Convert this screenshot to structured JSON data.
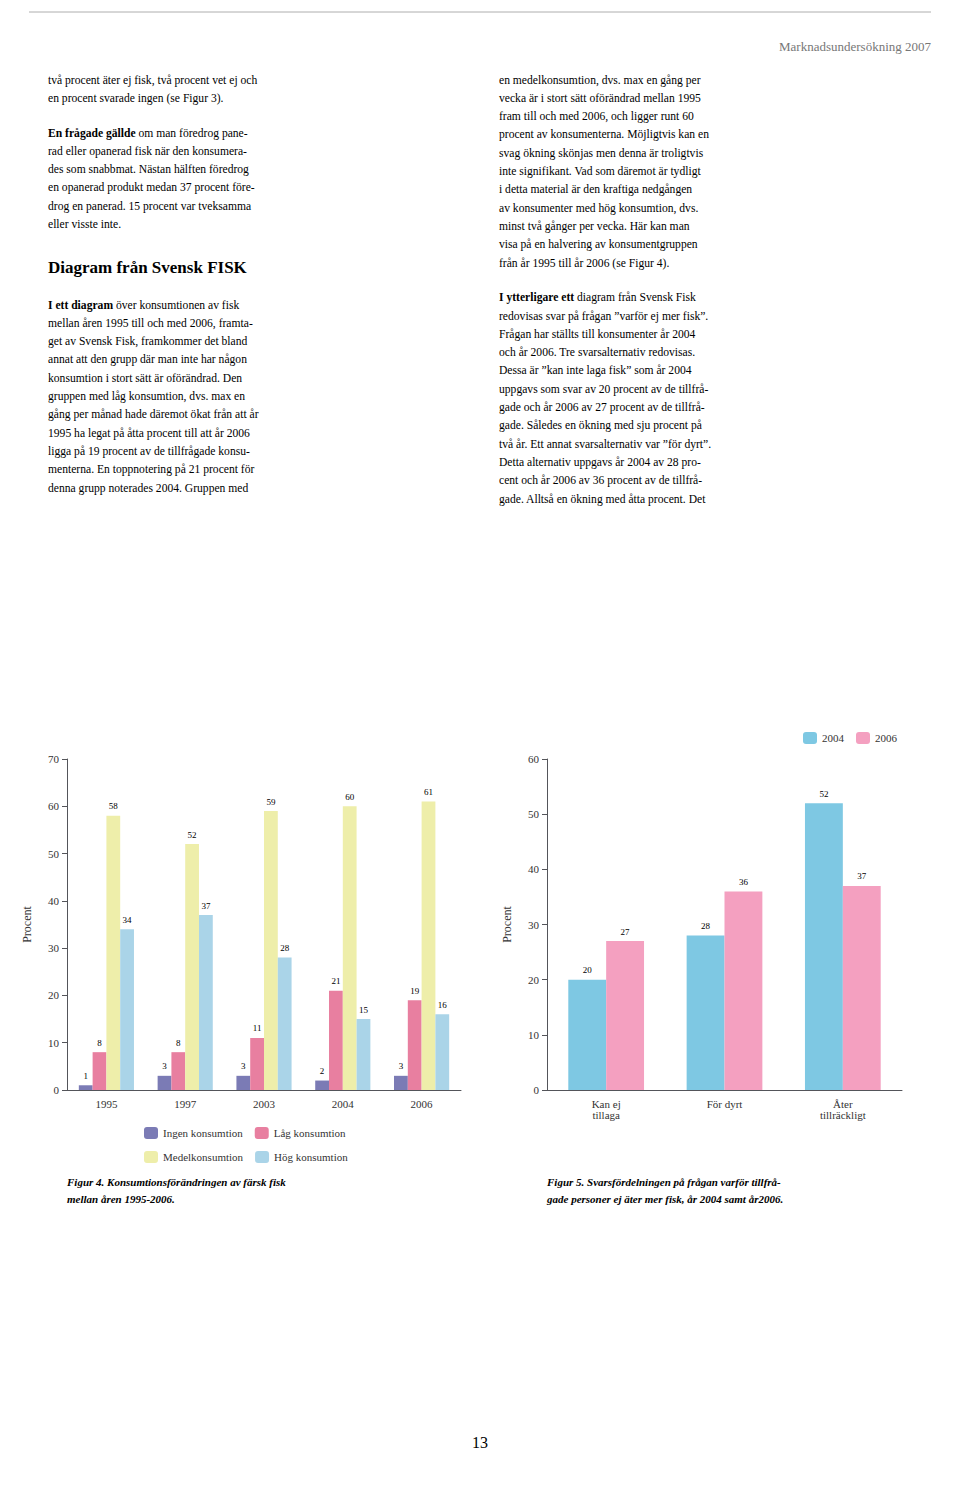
{
  "header": "Marknadsundersökning 2007",
  "page_number": "13",
  "text_columns": [
    [
      {
        "lines": [
          "två procent äter ej fisk, två procent vet ej och",
          "en procent svarade ingen (se Figur 3)."
        ]
      },
      {
        "bold_lead": "En frågade gällde",
        "lines": [
          " om man föredrog pane-",
          "rad eller opanerad fisk när den konsumera-",
          "des som snabbmat. Nästan hälften föredrog",
          "en opanerad produkt medan 37 procent före-",
          "drog en panerad. 15 procent var tveksamma",
          "eller visste inte."
        ]
      },
      {
        "heading": "Diagram från Svensk FISK"
      },
      {
        "bold_lead": "I ett diagram",
        "lines": [
          " över konsumtionen av fisk",
          "mellan åren 1995 till och med 2006, framta-",
          "get av Svensk Fisk, framkommer det bland",
          "annat att den grupp där man inte har någon",
          "konsumtion i stort sätt är oförändrad. Den",
          "gruppen med låg konsumtion, dvs. max en",
          "gång per månad hade däremot ökat från att år",
          "1995 ha legat på åtta procent till att år 2006",
          "ligga på 19 procent av de tillfrågade konsu-",
          "menterna. En toppnotering på 21 procent för",
          "denna grupp noterades 2004. Gruppen med"
        ]
      }
    ],
    [
      {
        "lines": [
          "en medelkonsumtion, dvs. max en gång per",
          "vecka är i stort sätt oförändrad mellan 1995",
          "fram till och med 2006, och ligger runt 60",
          "procent av konsumenterna. Möjligtvis kan en",
          "svag ökning skönjas men denna är troligtvis",
          "inte signifikant. Vad som däremot är tydligt",
          "i detta material är den kraftiga nedgången",
          "av konsumenter med hög konsumtion, dvs.",
          "minst två gånger per vecka. Här kan man",
          "visa på en halvering av konsumentgruppen",
          "från år 1995 till år 2006 (se Figur 4)."
        ]
      },
      {
        "bold_lead": "I ytterligare ett",
        "lines": [
          " diagram från Svensk Fisk",
          "redovisas svar på frågan ”varför ej mer fisk”.",
          "Frågan har ställts till konsumenter år 2004",
          "och år 2006. Tre svarsalternativ redovisas.",
          "Dessa är ”kan inte laga fisk” som år 2004",
          "uppgavs som svar av 20 procent av de tillfrå-",
          "gade och år 2006 av 27 procent av de tillfrå-",
          "gade. Således en ökning med sju procent på",
          "två år. Ett annat svarsalternativ var ”för dyrt”.",
          "Detta alternativ uppgavs år 2004 av 28 pro-",
          "cent och år 2006 av 36 procent av de tillfrå-",
          "gade. Alltså en ökning med åtta procent. Det"
        ]
      }
    ]
  ],
  "chart_data": [
    {
      "type": "bar",
      "categories": [
        "1995",
        "1997",
        "2003",
        "2004",
        "2006"
      ],
      "series": [
        {
          "name": "Ingen konsumtion",
          "color": "#7b7bb5",
          "values": [
            1,
            3,
            3,
            2,
            3
          ]
        },
        {
          "name": "Låg konsumtion",
          "color": "#e87fa0",
          "values": [
            8,
            8,
            11,
            21,
            19
          ]
        },
        {
          "name": "Medelkonsumtion",
          "color": "#eeeeaa",
          "values": [
            58,
            52,
            59,
            60,
            61
          ]
        },
        {
          "name": "Hög konsumtion",
          "color": "#aad4e8",
          "values": [
            34,
            37,
            28,
            15,
            16
          ]
        }
      ],
      "ylabel": "Procent",
      "ylim": [
        0,
        70
      ],
      "yticks": [
        0,
        10,
        20,
        30,
        40,
        50,
        60,
        70
      ],
      "grid": false,
      "legend": "bottom",
      "data_labels": true,
      "caption": [
        "Figur 4. Konsumtionsförändringen av färsk fisk",
        "mellan åren 1995-2006."
      ]
    },
    {
      "type": "bar",
      "categories": [
        "Kan ej\ntillaga",
        "För dyrt",
        "Åter\ntillräckligt"
      ],
      "series": [
        {
          "name": "2004",
          "color": "#7ec8e3",
          "values": [
            20,
            28,
            52
          ]
        },
        {
          "name": "2006",
          "color": "#f4a0c0",
          "values": [
            27,
            36,
            37
          ]
        }
      ],
      "ylabel": "Procent",
      "ylim": [
        0,
        60
      ],
      "yticks": [
        0,
        10,
        20,
        30,
        40,
        50,
        60
      ],
      "grid": false,
      "legend": "upper right",
      "data_labels": true,
      "caption": [
        "Figur 5. Svarsfördelningen på frågan varför tillfrå-",
        "gade personer ej äter mer fisk, år 2004 samt år2006."
      ]
    }
  ]
}
